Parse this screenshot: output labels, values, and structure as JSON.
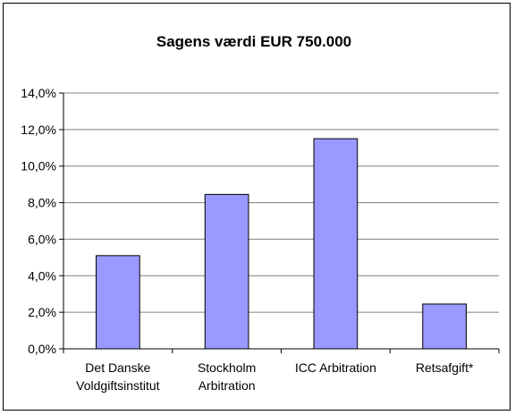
{
  "chart_data": {
    "type": "bar",
    "title": "Sagens værdi EUR 750.000",
    "categories": [
      [
        "Det Danske",
        "Voldgiftsinstitut"
      ],
      [
        "Stockholm",
        "Arbitration"
      ],
      [
        "ICC Arbitration"
      ],
      [
        "Retsafgift*"
      ]
    ],
    "values": [
      5.1,
      8.45,
      11.5,
      2.45
    ],
    "ylim": [
      0,
      14
    ],
    "ytick_step": 2,
    "ytick_labels": [
      "0,0%",
      "2,0%",
      "4,0%",
      "6,0%",
      "8,0%",
      "10,0%",
      "12,0%",
      "14,0%"
    ],
    "xlabel": "",
    "ylabel": "",
    "grid": true,
    "bar_color": "#9999ff",
    "legend": "none"
  }
}
